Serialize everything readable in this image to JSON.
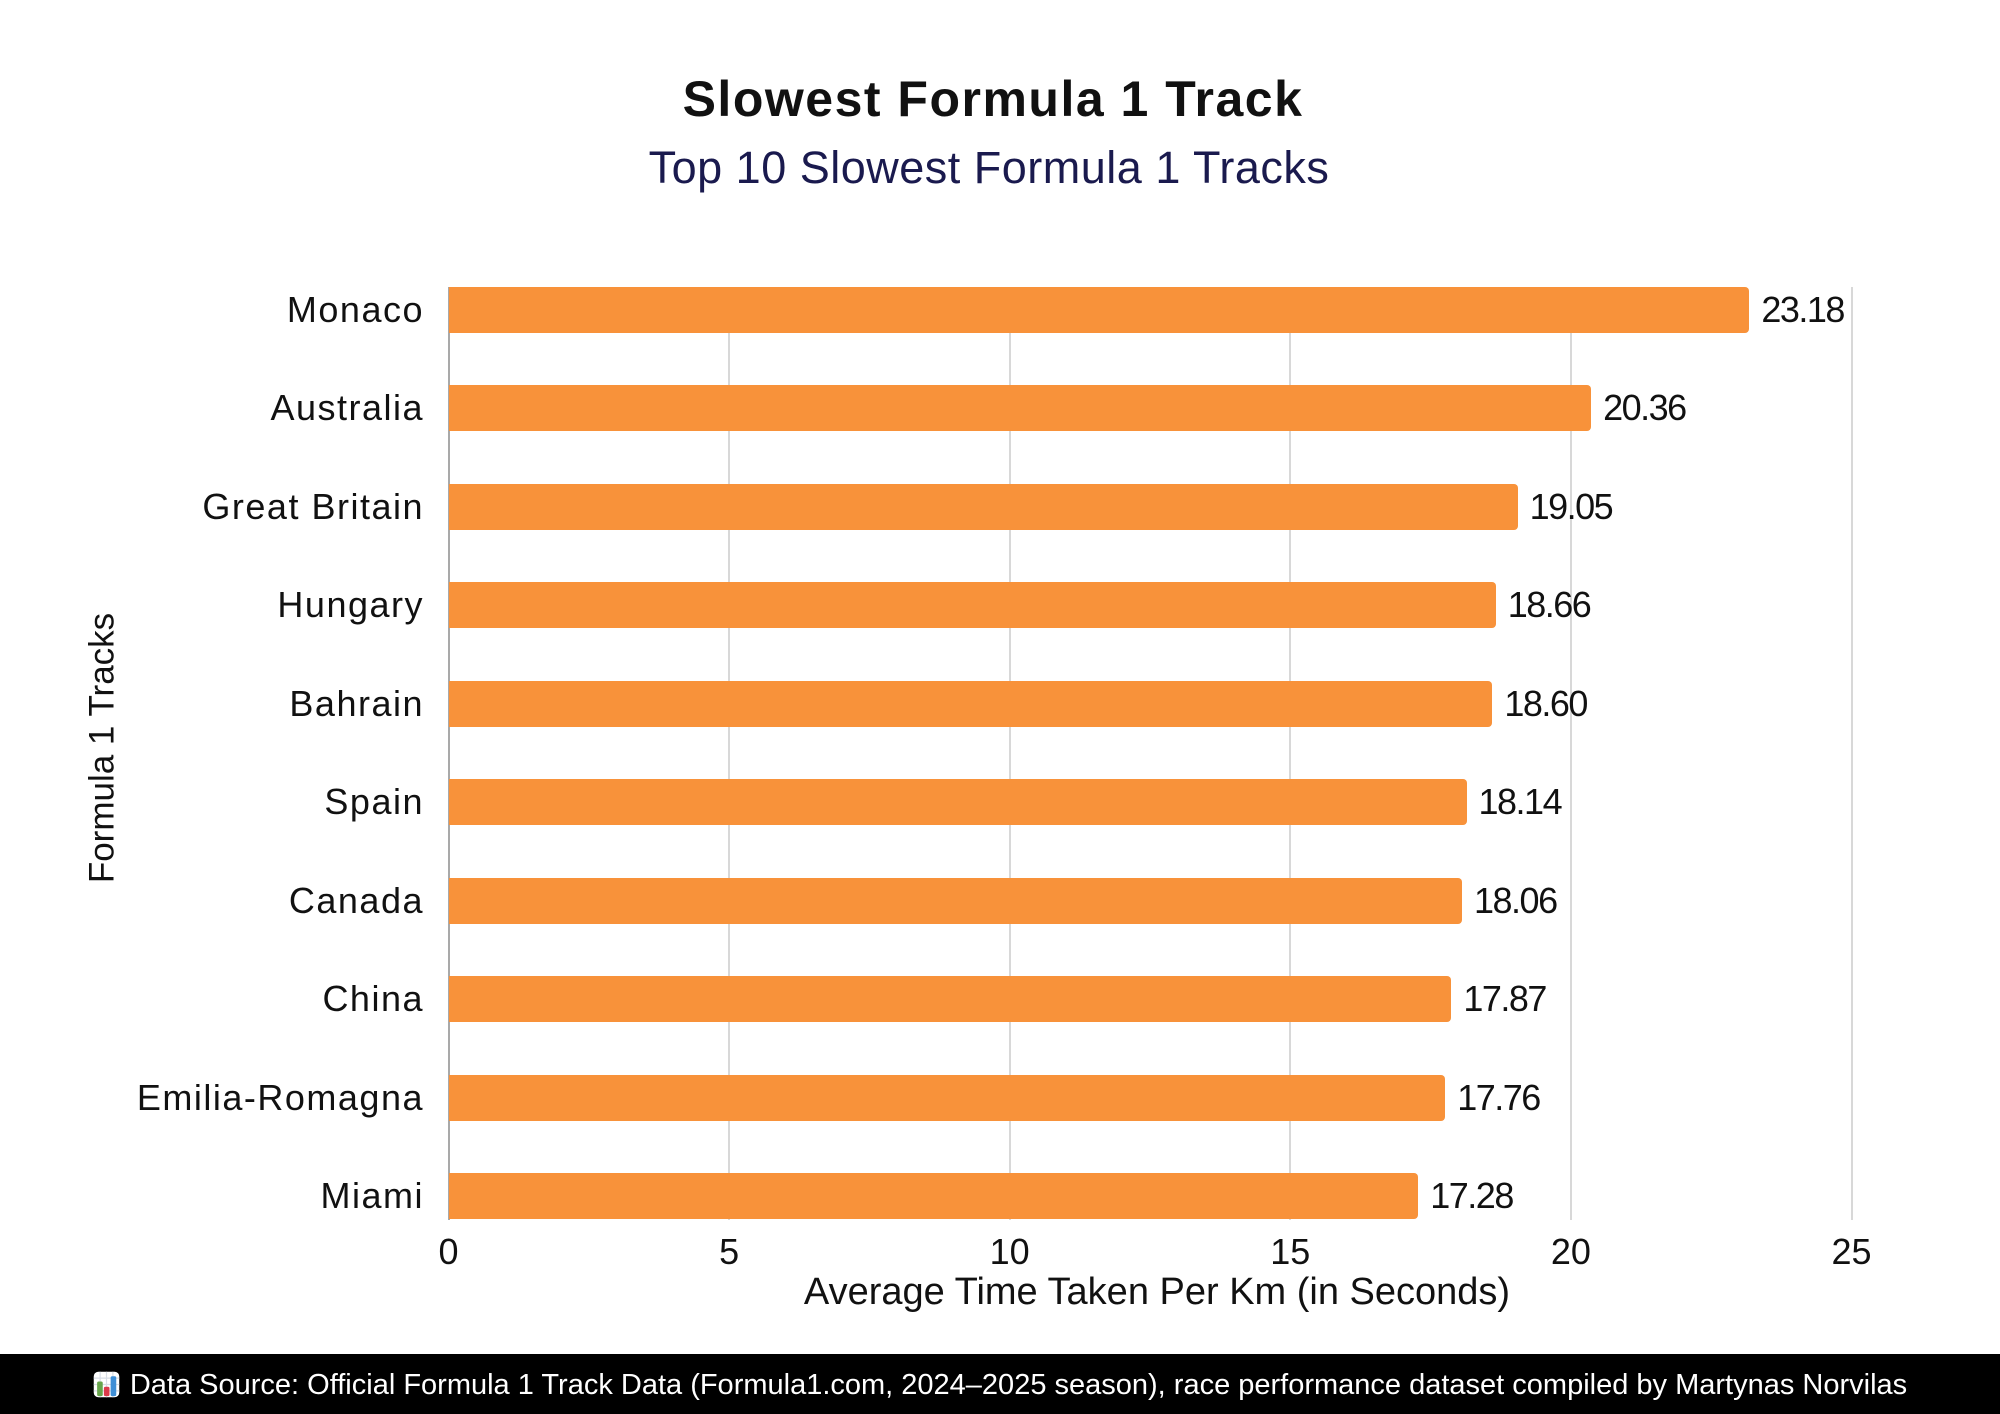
{
  "page": {
    "title": "Slowest Formula 1 Track",
    "subtitle": "Top 10 Slowest Formula 1 Tracks",
    "footer": {
      "icon": "bar-chart-emoji",
      "text": "Data Source: Official Formula 1 Track Data (Formula1.com, 2024–2025 season), race performance dataset compiled by Martynas Norvilas"
    }
  },
  "colors": {
    "bar": "#F8923A",
    "title": "#111111",
    "subtitle": "#1A1A4E",
    "text": "#111111",
    "grid": "#D8D8D8",
    "axis": "#A9A9A9",
    "footer_bg": "#000000",
    "footer_text": "#FFFFFF",
    "background": "#FFFFFF"
  },
  "chart_data": {
    "type": "bar",
    "orientation": "horizontal",
    "title": "Slowest Formula 1 Track",
    "subtitle": "Top 10 Slowest Formula 1 Tracks",
    "categories": [
      "Monaco",
      "Australia",
      "Great Britain",
      "Hungary",
      "Bahrain",
      "Spain",
      "Canada",
      "China",
      "Emilia-Romagna",
      "Miami"
    ],
    "values": [
      23.18,
      20.36,
      19.05,
      18.66,
      18.6,
      18.14,
      18.06,
      17.87,
      17.76,
      17.28
    ],
    "value_labels": [
      "23.18",
      "20.36",
      "19.05",
      "18.66",
      "18.60",
      "18.14",
      "18.06",
      "17.87",
      "17.76",
      "17.28"
    ],
    "xlabel": "Average Time Taken Per Km (in Seconds)",
    "ylabel": "Formula 1 Tracks",
    "xlim": [
      0,
      25
    ],
    "xticks": [
      0,
      5,
      10,
      15,
      20,
      25
    ],
    "grid": "vertical",
    "legend": false
  }
}
